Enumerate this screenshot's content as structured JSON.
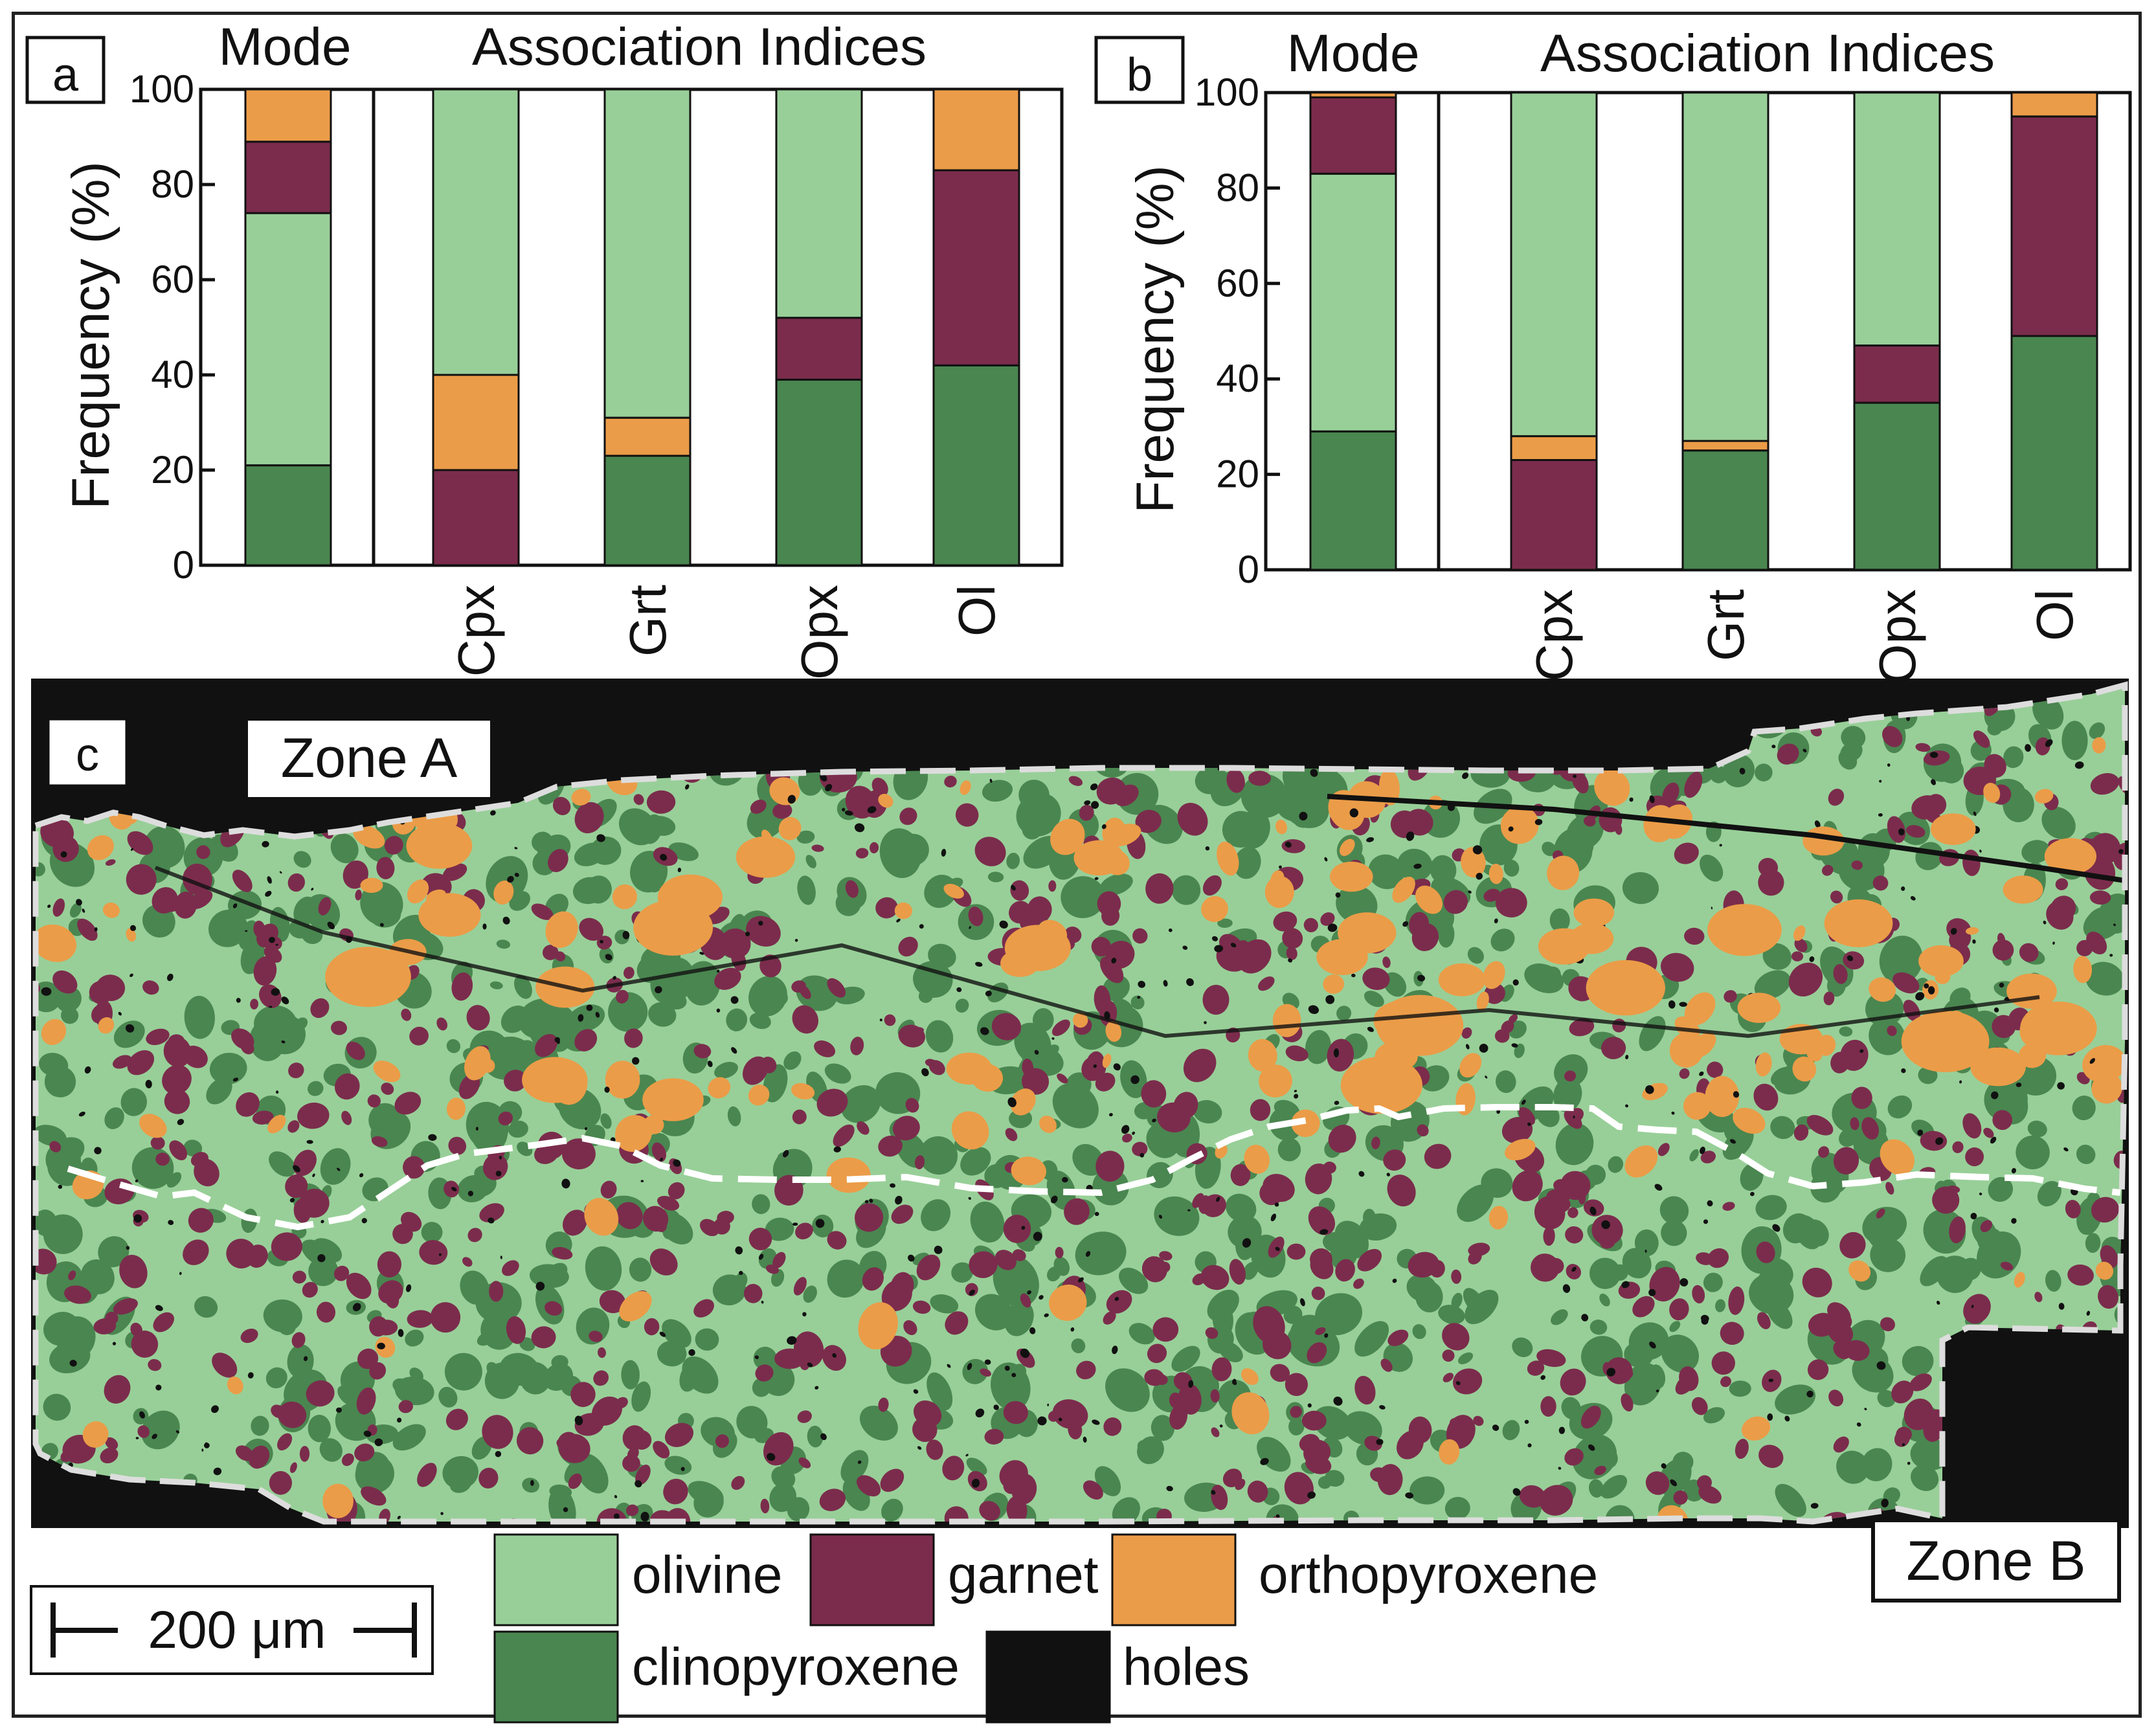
{
  "colors": {
    "olivine": "#98cf98",
    "garnet": "#7b2c4c",
    "orthopyroxene": "#eb9c48",
    "clinopyroxene": "#4a8650",
    "holes": "#111111"
  },
  "chart_data": [
    {
      "type": "bar",
      "stacked": true,
      "panel": "a",
      "section_labels": [
        "Mode",
        "Association Indices"
      ],
      "ylabel": "Frequency (%)",
      "ylim": [
        0,
        100
      ],
      "yticks": [
        "0",
        "20",
        "40",
        "60",
        "80",
        "100"
      ],
      "categories": [
        "",
        "Cpx",
        "Grt",
        "Opx",
        "Ol"
      ],
      "series": [
        {
          "name": "clinopyroxene",
          "color": "#4a8650",
          "values": [
            21,
            0,
            23,
            39,
            42
          ]
        },
        {
          "name": "olivine",
          "color": "#98cf98",
          "values": [
            53,
            0,
            0,
            0,
            0
          ]
        },
        {
          "name": "garnet",
          "color": "#7b2c4c",
          "values": [
            15,
            20,
            0,
            13,
            41
          ]
        },
        {
          "name": "orthopyroxene",
          "color": "#eb9c48",
          "values": [
            11,
            20,
            8,
            0,
            17
          ]
        },
        {
          "name": "olivine",
          "color": "#98cf98",
          "values": [
            0,
            60,
            69,
            48,
            0
          ]
        }
      ]
    },
    {
      "type": "bar",
      "stacked": true,
      "panel": "b",
      "section_labels": [
        "Mode",
        "Association Indices"
      ],
      "ylabel": "Frequency (%)",
      "ylim": [
        0,
        100
      ],
      "yticks": [
        "0",
        "20",
        "40",
        "60",
        "80",
        "100"
      ],
      "categories": [
        "",
        "Cpx",
        "Grt",
        "Opx",
        "Ol"
      ],
      "series": [
        {
          "name": "clinopyroxene",
          "color": "#4a8650",
          "values": [
            29,
            0,
            25,
            35,
            49
          ]
        },
        {
          "name": "olivine",
          "color": "#98cf98",
          "values": [
            54,
            0,
            0,
            0,
            0
          ]
        },
        {
          "name": "garnet",
          "color": "#7b2c4c",
          "values": [
            16,
            23,
            0,
            12,
            46
          ]
        },
        {
          "name": "orthopyroxene",
          "color": "#eb9c48",
          "values": [
            1,
            5,
            2,
            0,
            5
          ]
        },
        {
          "name": "olivine",
          "color": "#98cf98",
          "values": [
            0,
            72,
            73,
            53,
            0
          ]
        }
      ]
    }
  ],
  "panel_c": {
    "letter": "c",
    "zone_a": "Zone A",
    "zone_b": "Zone B",
    "scale_bar": "200 μm"
  },
  "legend": {
    "items": [
      {
        "label": "olivine",
        "color": "#98cf98"
      },
      {
        "label": "garnet",
        "color": "#7b2c4c"
      },
      {
        "label": "orthopyroxene",
        "color": "#eb9c48"
      },
      {
        "label": "clinopyroxene",
        "color": "#4a8650"
      },
      {
        "label": "holes",
        "color": "#111111"
      }
    ]
  }
}
